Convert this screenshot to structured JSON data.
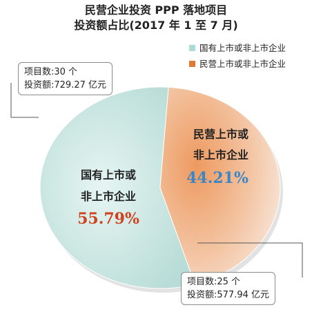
{
  "title_line1": "民营企业投资 PPP 落地项目",
  "title_line2": "投资额占比(2017 年 1 至 7 月)",
  "chart_data": {
    "type": "pie",
    "title": "民营企业投资 PPP 落地项目 投资额占比(2017 年 1 至 7 月)",
    "legend_position": "top-right",
    "series": [
      {
        "name": "国有上市或非上市企业",
        "label_line1": "国有上市或",
        "label_line2": "非上市企业",
        "percent_label": "55.79%",
        "value": 55.79,
        "projects_text": "项目数:30 个",
        "investment_text": "投资额:729.27 亿元",
        "projects": 30,
        "investment": 729.27
      },
      {
        "name": "民营上市或非上市企业",
        "label_line1": "民营上市或",
        "label_line2": "非上市企业",
        "percent_label": "44.21%",
        "value": 44.21,
        "projects_text": "项目数:25 个",
        "investment_text": "投资额:577.94 亿元",
        "projects": 25,
        "investment": 577.94
      }
    ]
  },
  "colors": {
    "state": "#d2ebe8",
    "private": "#e8965e",
    "state_pct": "#d0421f",
    "private_pct": "#3b86c6",
    "legend_state": "#a9dcd7",
    "legend_private": "#e07a33"
  }
}
